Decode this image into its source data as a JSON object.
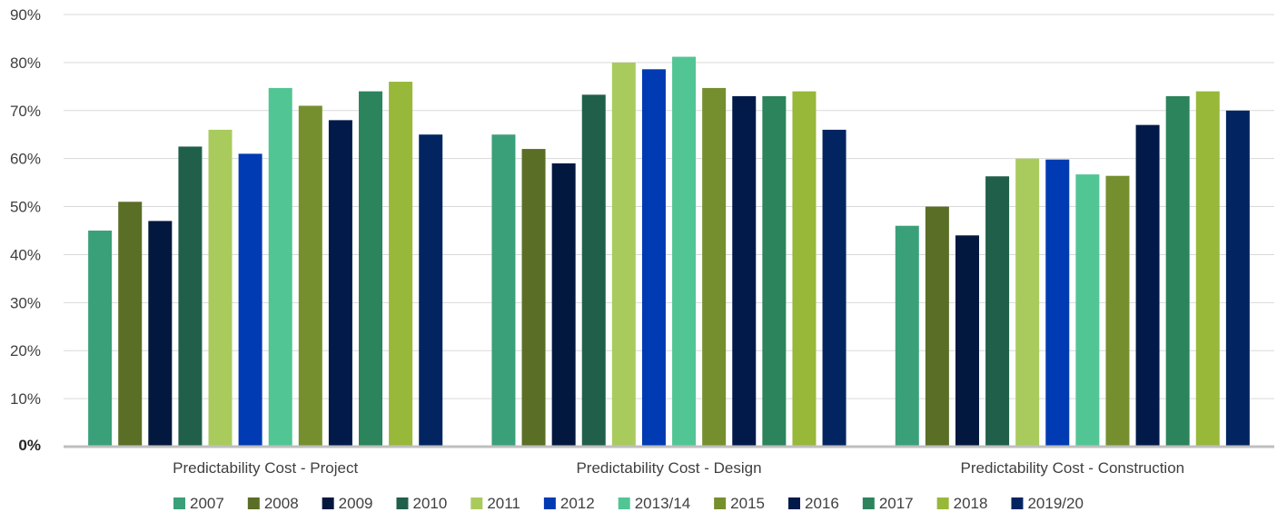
{
  "chart_data": {
    "type": "bar",
    "title": "",
    "xlabel": "",
    "ylabel": "",
    "ylim": [
      0,
      90
    ],
    "yticks": [
      0,
      10,
      20,
      30,
      40,
      50,
      60,
      70,
      80,
      90
    ],
    "ytick_labels": [
      "0%",
      "10%",
      "20%",
      "30%",
      "40%",
      "50%",
      "60%",
      "70%",
      "80%",
      "90%"
    ],
    "grid": true,
    "legend_position": "bottom",
    "categories": [
      "Predictability Cost - Project",
      "Predictability Cost - Design",
      "Predictability Cost - Construction"
    ],
    "series": [
      {
        "name": "2007",
        "color": "#3aa079",
        "values": [
          45,
          65,
          46
        ]
      },
      {
        "name": "2008",
        "color": "#5a6e25",
        "values": [
          51,
          62,
          50
        ]
      },
      {
        "name": "2009",
        "color": "#02183f",
        "values": [
          47,
          59,
          44
        ]
      },
      {
        "name": "2010",
        "color": "#20604a",
        "values": [
          62.5,
          73.3,
          56.3
        ]
      },
      {
        "name": "2011",
        "color": "#a9cb5e",
        "values": [
          66,
          80,
          60
        ]
      },
      {
        "name": "2012",
        "color": "#003bb3",
        "values": [
          61,
          78.6,
          59.8
        ]
      },
      {
        "name": "2013/14",
        "color": "#52c595",
        "values": [
          74.7,
          81.2,
          56.7
        ]
      },
      {
        "name": "2015",
        "color": "#768f2e",
        "values": [
          71,
          74.7,
          56.4
        ]
      },
      {
        "name": "2016",
        "color": "#011a4a",
        "values": [
          68,
          73,
          67
        ]
      },
      {
        "name": "2017",
        "color": "#2b845c",
        "values": [
          74,
          73,
          73
        ]
      },
      {
        "name": "2018",
        "color": "#98b83a",
        "values": [
          76,
          74,
          74
        ]
      },
      {
        "name": "2019/20",
        "color": "#022561",
        "values": [
          65,
          66,
          70
        ]
      }
    ]
  }
}
